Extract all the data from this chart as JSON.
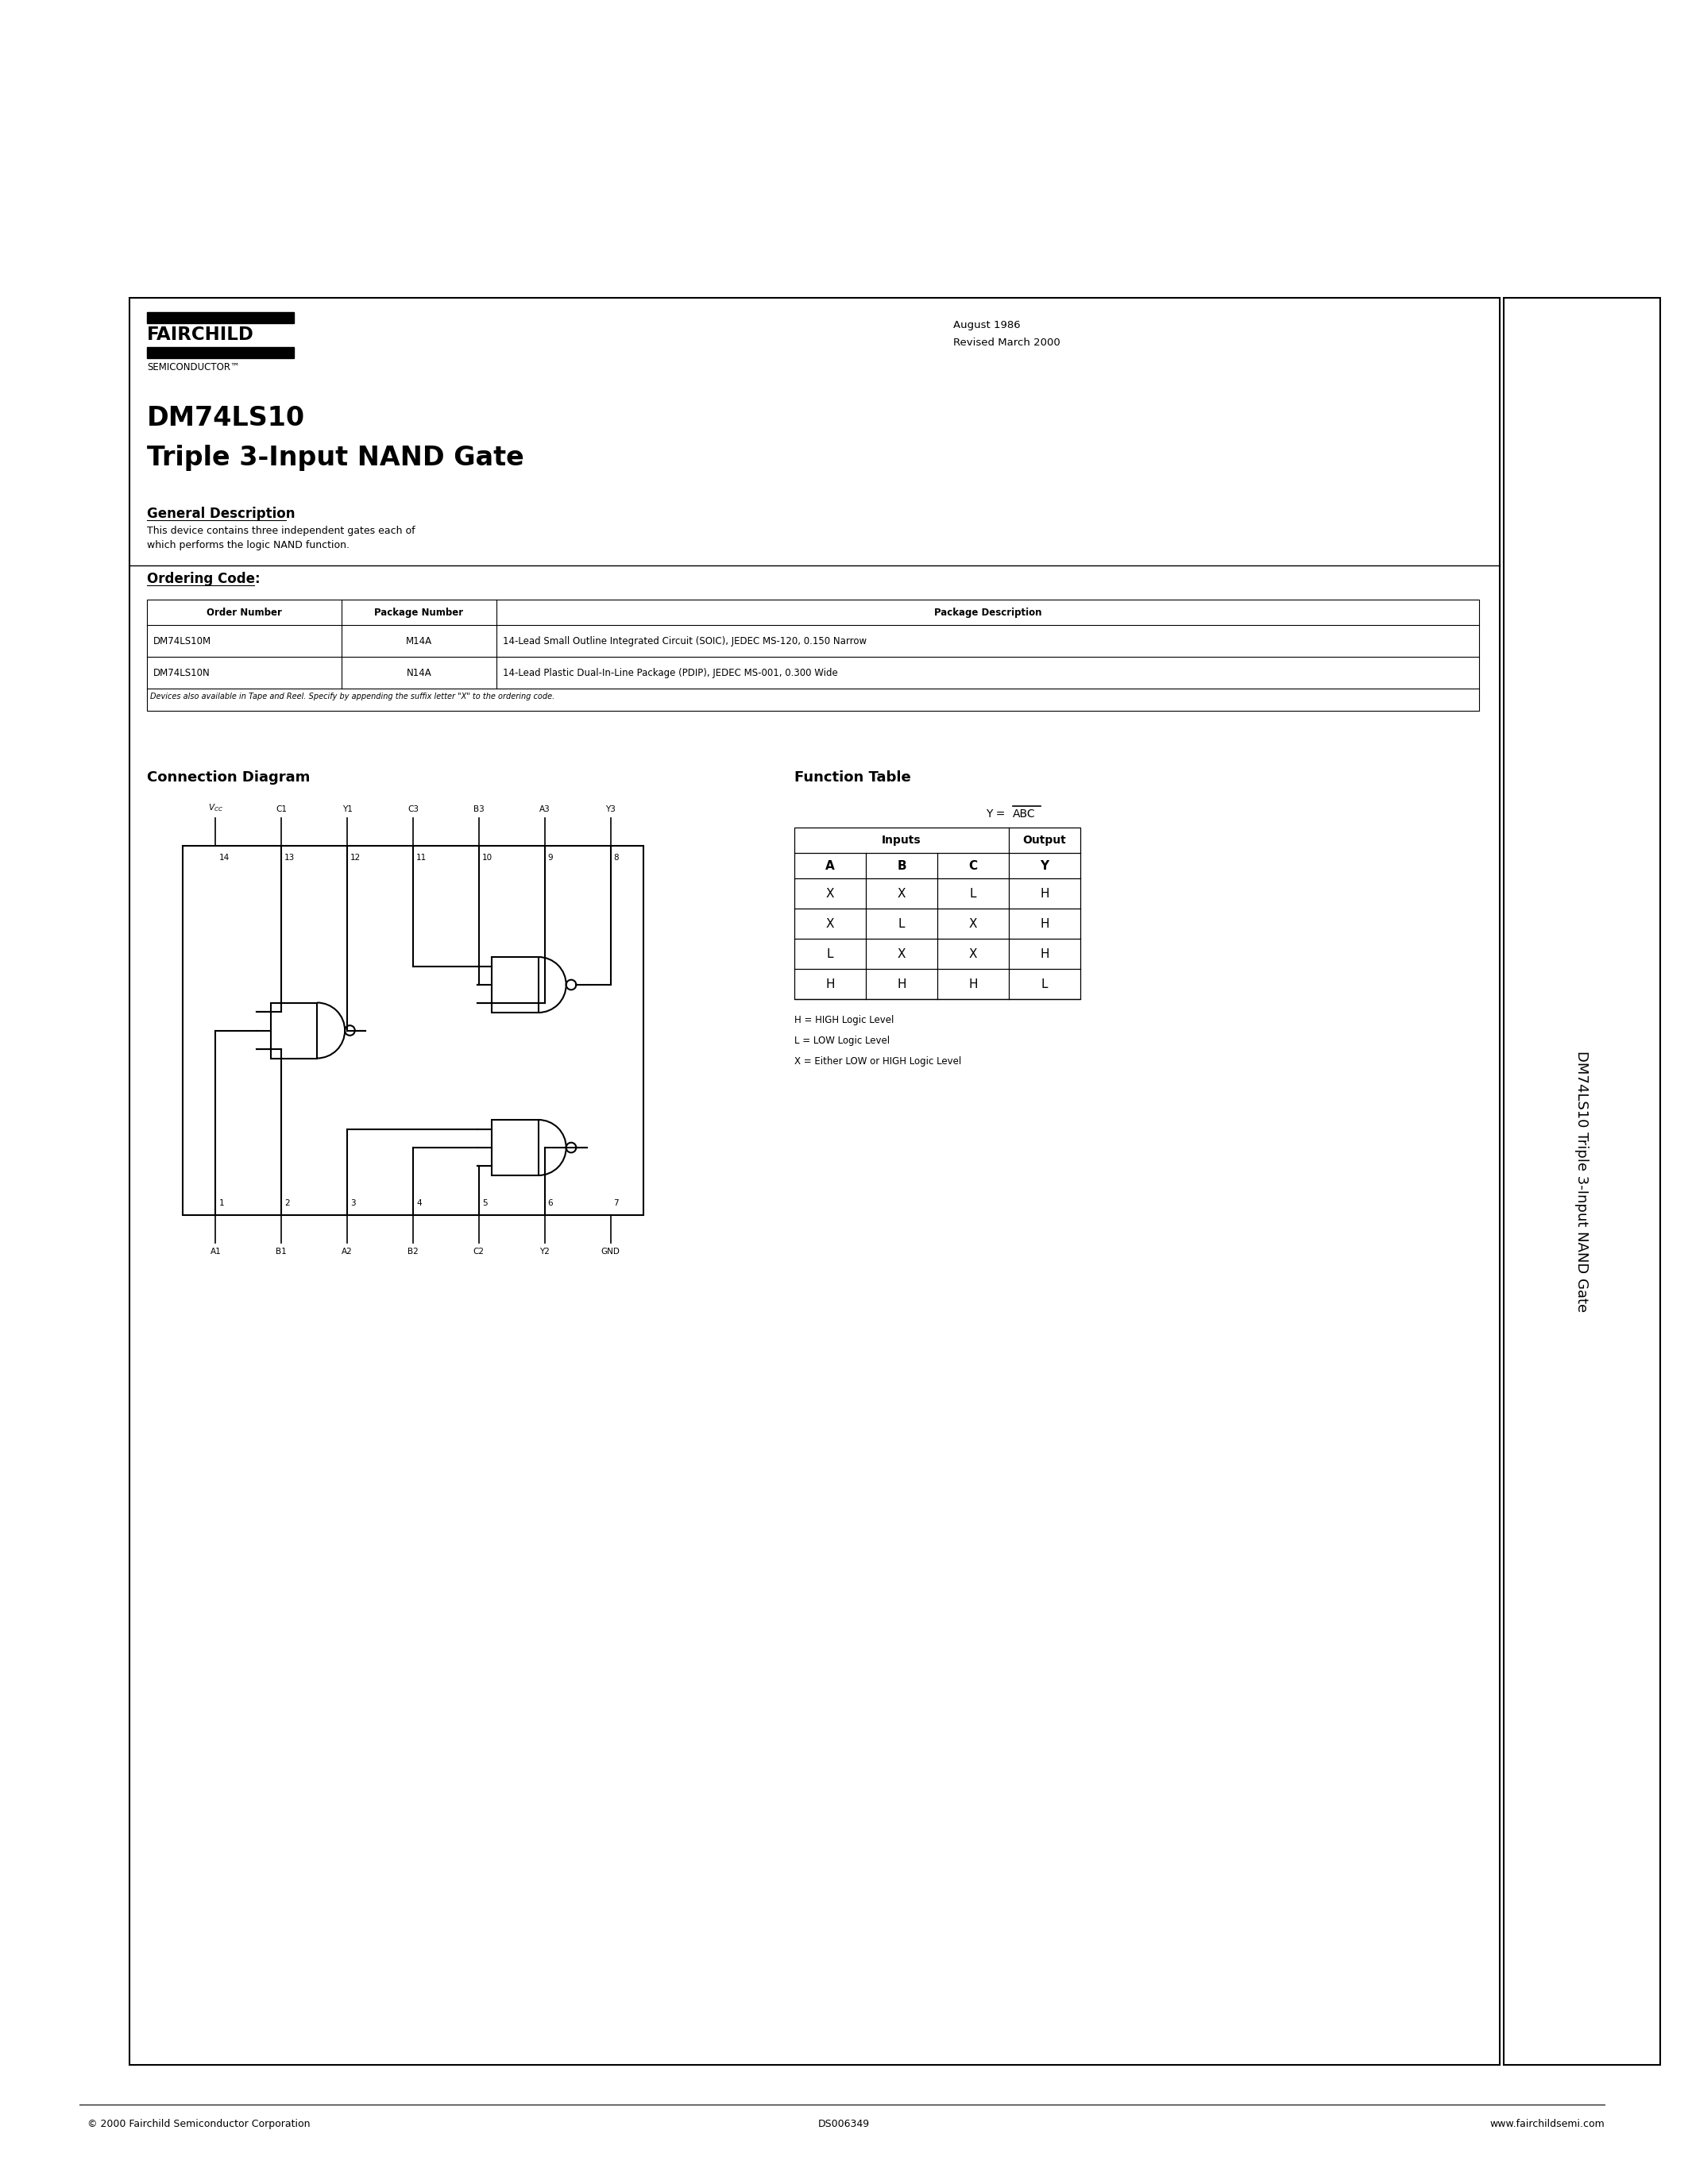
{
  "bg_color": "#ffffff",
  "date_text1": "August 1986",
  "date_text2": "Revised March 2000",
  "title1": "DM74LS10",
  "title2": "Triple 3-Input NAND Gate",
  "gen_desc_title": "General Description",
  "gen_desc_body1": "This device contains three independent gates each of",
  "gen_desc_body2": "which performs the logic NAND function.",
  "ordering_title": "Ordering Code:",
  "table_headers": [
    "Order Number",
    "Package Number",
    "Package Description"
  ],
  "table_row1": [
    "DM74LS10M",
    "M14A",
    "14-Lead Small Outline Integrated Circuit (SOIC), JEDEC MS-120, 0.150 Narrow"
  ],
  "table_row2": [
    "DM74LS10N",
    "N14A",
    "14-Lead Plastic Dual-In-Line Package (PDIP), JEDEC MS-001, 0.300 Wide"
  ],
  "table_note": "Devices also available in Tape and Reel. Specify by appending the suffix letter \"X\" to the ordering code.",
  "conn_diag_title": "Connection Diagram",
  "func_table_title": "Function Table",
  "func_headers": [
    "A",
    "B",
    "C",
    "Y"
  ],
  "func_inputs_label": "Inputs",
  "func_output_label": "Output",
  "func_rows": [
    [
      "X",
      "X",
      "L",
      "H"
    ],
    [
      "X",
      "L",
      "X",
      "H"
    ],
    [
      "L",
      "X",
      "X",
      "H"
    ],
    [
      "H",
      "H",
      "H",
      "L"
    ]
  ],
  "func_legend": [
    "H = HIGH Logic Level",
    "L = LOW Logic Level",
    "X = Either LOW or HIGH Logic Level"
  ],
  "side_text": "DM74LS10 Triple 3-Input NAND Gate",
  "footer_left": "© 2000 Fairchild Semiconductor Corporation",
  "footer_mid": "DS006349",
  "footer_right": "www.fairchildsemi.com",
  "pin_labels_top": [
    "Vₓₓ",
    "C1",
    "Y1",
    "C3",
    "B3",
    "A3",
    "Y3"
  ],
  "pin_numbers_top": [
    "14",
    "13",
    "12",
    "11",
    "10",
    "9",
    "8"
  ],
  "pin_labels_bot": [
    "A1",
    "B1",
    "A2",
    "B2",
    "C2",
    "Y2",
    "GND"
  ],
  "pin_numbers_bot": [
    "1",
    "2",
    "3",
    "4",
    "5",
    "6",
    "7"
  ]
}
